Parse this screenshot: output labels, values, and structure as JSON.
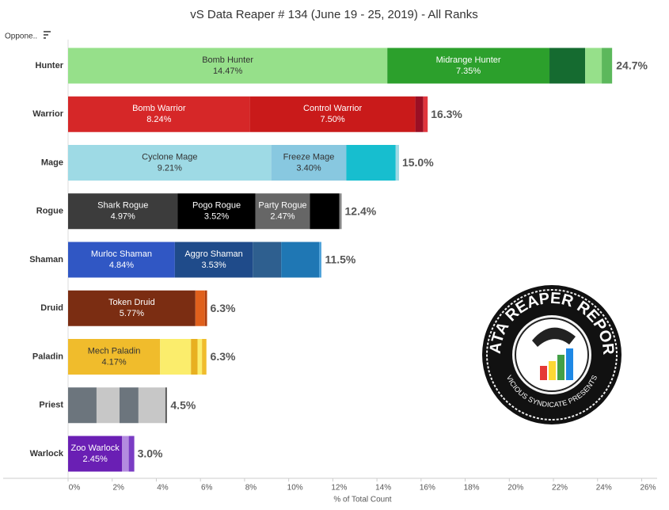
{
  "chart_data": {
    "type": "stacked-bar-horizontal",
    "title": "vS Data Reaper # 134 (June 19 - 25, 2019) - All Ranks",
    "y_header": "Oppone..",
    "x_label": "% of Total Count",
    "xlim": [
      0,
      26.7
    ],
    "xticks": [
      {
        "value": 0,
        "label": "0%"
      },
      {
        "value": 2,
        "label": "2%"
      },
      {
        "value": 4,
        "label": "4%"
      },
      {
        "value": 6,
        "label": "6%"
      },
      {
        "value": 8,
        "label": "8%"
      },
      {
        "value": 10,
        "label": "10%"
      },
      {
        "value": 12,
        "label": "12%"
      },
      {
        "value": 14,
        "label": "14%"
      },
      {
        "value": 16,
        "label": "16%"
      },
      {
        "value": 18,
        "label": "18%"
      },
      {
        "value": 20,
        "label": "20%"
      },
      {
        "value": 22,
        "label": "22%"
      },
      {
        "value": 24,
        "label": "24%"
      },
      {
        "value": 26,
        "label": "26%"
      }
    ],
    "rows": [
      {
        "category": "Hunter",
        "total": 24.7,
        "total_label": "24.7%",
        "segments": [
          {
            "name": "Bomb Hunter",
            "value": 14.47,
            "value_label": "14.47%",
            "color": "#96e08a"
          },
          {
            "name": "Midrange Hunter",
            "value": 7.35,
            "value_label": "7.35%",
            "color": "#2ca02c"
          },
          {
            "value": 1.62,
            "color": "#156b30"
          },
          {
            "value": 0.75,
            "color": "#96e08a"
          },
          {
            "value": 0.47,
            "color": "#5cb85c"
          }
        ]
      },
      {
        "category": "Warrior",
        "total": 16.3,
        "total_label": "16.3%",
        "segments": [
          {
            "name": "Bomb Warrior",
            "value": 8.24,
            "value_label": "8.24%",
            "color": "#d62728"
          },
          {
            "name": "Control Warrior",
            "value": 7.5,
            "value_label": "7.50%",
            "color": "#c91a1a"
          },
          {
            "value": 0.36,
            "color": "#9a0f24"
          },
          {
            "value": 0.2,
            "color": "#e0353d"
          }
        ]
      },
      {
        "category": "Mage",
        "total": 15.0,
        "total_label": "15.0%",
        "segments": [
          {
            "name": "Cyclone Mage",
            "value": 9.21,
            "value_label": "9.21%",
            "color": "#9edae5"
          },
          {
            "name": "Freeze Mage",
            "value": 3.4,
            "value_label": "3.40%",
            "color": "#88c8e0"
          },
          {
            "value": 2.24,
            "color": "#17becf"
          },
          {
            "value": 0.15,
            "color": "#9edae5"
          }
        ]
      },
      {
        "category": "Rogue",
        "total": 12.4,
        "total_label": "12.4%",
        "segments": [
          {
            "name": "Shark Rogue",
            "value": 4.97,
            "value_label": "4.97%",
            "color": "#3c3c3c"
          },
          {
            "name": "Pogo Rogue",
            "value": 3.52,
            "value_label": "3.52%",
            "color": "#000000"
          },
          {
            "name": "Party Rogue",
            "value": 2.47,
            "value_label": "2.47%",
            "color": "#666666"
          },
          {
            "value": 1.34,
            "color": "#000000"
          },
          {
            "value": 0.1,
            "color": "#888888"
          }
        ]
      },
      {
        "category": "Shaman",
        "total": 11.5,
        "total_label": "11.5%",
        "segments": [
          {
            "name": "Murloc Shaman",
            "value": 4.84,
            "value_label": "4.84%",
            "color": "#3057c4"
          },
          {
            "name": "Aggro Shaman",
            "value": 3.53,
            "value_label": "3.53%",
            "color": "#1f4b8a"
          },
          {
            "value": 1.29,
            "color": "#2e5f8f"
          },
          {
            "value": 1.72,
            "color": "#1f77b4"
          },
          {
            "value": 0.1,
            "color": "#4a9fd8"
          }
        ]
      },
      {
        "category": "Druid",
        "total": 6.3,
        "total_label": "6.3%",
        "segments": [
          {
            "name": "Token Druid",
            "value": 5.77,
            "value_label": "5.77%",
            "color": "#7b2d12"
          },
          {
            "value": 0.43,
            "color": "#e0601c"
          },
          {
            "value": 0.1,
            "color": "#b04010"
          }
        ]
      },
      {
        "category": "Paladin",
        "total": 6.3,
        "total_label": "6.3%",
        "segments": [
          {
            "name": "Mech Paladin",
            "value": 4.17,
            "value_label": "4.17%",
            "color": "#f0bc2c"
          },
          {
            "value": 1.4,
            "color": "#fbed6c"
          },
          {
            "value": 0.3,
            "color": "#e8b020"
          },
          {
            "value": 0.2,
            "color": "#fbed6c"
          },
          {
            "value": 0.2,
            "color": "#f0bc2c"
          }
        ]
      },
      {
        "category": "Priest",
        "total": 4.5,
        "total_label": "4.5%",
        "segments": [
          {
            "value": 1.29,
            "color": "#6c757d"
          },
          {
            "value": 1.04,
            "color": "#c7c7c7"
          },
          {
            "value": 0.86,
            "color": "#6c757d"
          },
          {
            "value": 1.22,
            "color": "#c7c7c7"
          },
          {
            "value": 0.07,
            "color": "#555555"
          }
        ]
      },
      {
        "category": "Warlock",
        "total": 3.0,
        "total_label": "3.0%",
        "segments": [
          {
            "name": "Zoo Warlock",
            "value": 2.45,
            "value_label": "2.45%",
            "color": "#6a1fb4"
          },
          {
            "value": 0.3,
            "color": "#b38be0"
          },
          {
            "value": 0.25,
            "color": "#7a3cc4"
          }
        ]
      }
    ]
  },
  "logo": {
    "title": "DATA REAPER REPORT",
    "subtitle": "VICIOUS SYNDICATE PRESENTS"
  }
}
